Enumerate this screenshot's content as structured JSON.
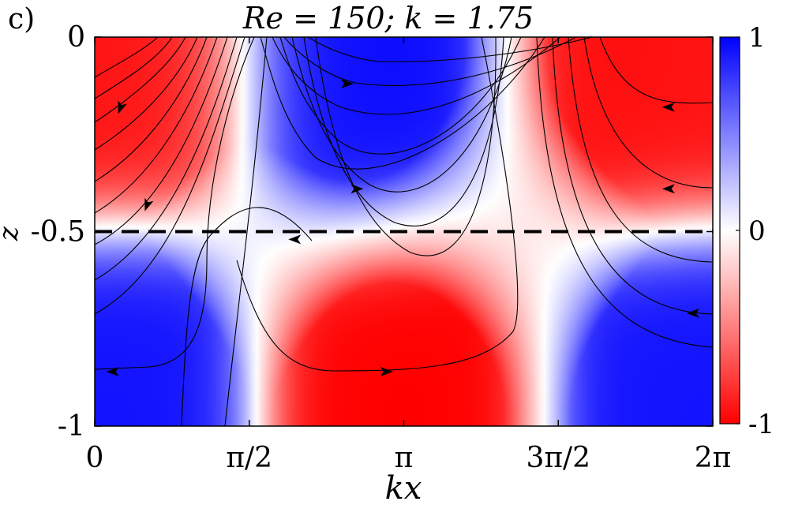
{
  "panel_label": "c)",
  "chart_data": {
    "type": "heatmap",
    "title": "Re = 150; k = 1.75",
    "xlabel": "kx",
    "ylabel": "z",
    "xlim": [
      0,
      6.2832
    ],
    "ylim": [
      -1,
      0
    ],
    "x_ticks": [
      {
        "value": 0,
        "label": "0"
      },
      {
        "value": 1.5708,
        "label": "π/2"
      },
      {
        "value": 3.1416,
        "label": "π"
      },
      {
        "value": 4.7124,
        "label": "3π/2"
      },
      {
        "value": 6.2832,
        "label": "2π"
      }
    ],
    "y_ticks": [
      {
        "value": 0,
        "label": "0"
      },
      {
        "value": -0.5,
        "label": "-0.5"
      },
      {
        "value": -1,
        "label": "-1"
      }
    ],
    "colorbar": {
      "range": [
        -1,
        1
      ],
      "ticks": [
        {
          "value": 1,
          "label": "1"
        },
        {
          "value": 0,
          "label": "0"
        },
        {
          "value": -1,
          "label": "-1"
        }
      ],
      "colors": {
        "low": "#ff0000",
        "mid": "#ffffff",
        "high": "#0000ff"
      }
    },
    "reference_line": {
      "z": -0.5,
      "style": "dashed",
      "color": "#000000"
    },
    "field": {
      "description_of_extrema": [
        {
          "x": 0.35,
          "z": -0.02,
          "value": -0.9
        },
        {
          "x": 2.65,
          "z": -0.02,
          "value": 0.95
        },
        {
          "x": 5.75,
          "z": -0.02,
          "value": -0.95
        },
        {
          "x": 0.05,
          "z": -0.98,
          "value": 0.95
        },
        {
          "x": 3.05,
          "z": -0.98,
          "value": -1
        },
        {
          "x": 6.25,
          "z": -0.98,
          "value": 0.9
        }
      ]
    },
    "streamlines": {
      "count": 24,
      "line_color": "#000000",
      "arrows": [
        {
          "x": 2.6,
          "z": -0.12,
          "dir": "right"
        },
        {
          "x": 0.25,
          "z": -0.19,
          "dir": "down"
        },
        {
          "x": 5.8,
          "z": -0.18,
          "dir": "left"
        },
        {
          "x": 2.7,
          "z": -0.39,
          "dir": "right"
        },
        {
          "x": 5.8,
          "z": -0.39,
          "dir": "left"
        },
        {
          "x": 0.52,
          "z": -0.44,
          "dir": "down"
        },
        {
          "x": 2.0,
          "z": -0.52,
          "dir": "left"
        },
        {
          "x": 6.05,
          "z": -0.71,
          "dir": "left"
        },
        {
          "x": 0.15,
          "z": -0.86,
          "dir": "left"
        },
        {
          "x": 3.0,
          "z": -0.86,
          "dir": "right"
        }
      ]
    }
  }
}
